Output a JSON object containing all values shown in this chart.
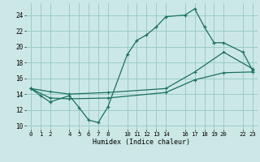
{
  "xlabel": "Humidex (Indice chaleur)",
  "bg_color": "#cce8e6",
  "grid_color": "#99ccc8",
  "line_color": "#1a7060",
  "xlim": [
    -0.5,
    23.5
  ],
  "ylim": [
    9.5,
    25.5
  ],
  "xticks": [
    0,
    1,
    2,
    4,
    5,
    6,
    7,
    8,
    10,
    11,
    12,
    13,
    14,
    16,
    17,
    18,
    19,
    20,
    22,
    23
  ],
  "yticks": [
    10,
    12,
    14,
    16,
    18,
    20,
    22,
    24
  ],
  "line1_x": [
    0,
    1,
    2,
    4,
    5,
    6,
    7,
    8,
    10,
    11,
    12,
    13,
    14,
    16,
    17,
    18,
    19,
    20,
    22,
    23
  ],
  "line1_y": [
    14.7,
    13.8,
    13.0,
    13.8,
    12.3,
    10.7,
    10.4,
    12.4,
    19.0,
    20.8,
    21.5,
    22.5,
    23.8,
    24.0,
    24.8,
    22.5,
    20.5,
    20.5,
    19.3,
    17.0
  ],
  "line2_x": [
    0,
    2,
    4,
    8,
    14,
    17,
    20,
    23
  ],
  "line2_y": [
    14.7,
    14.3,
    14.0,
    14.2,
    14.7,
    16.8,
    19.3,
    17.2
  ],
  "line3_x": [
    0,
    2,
    4,
    8,
    14,
    17,
    20,
    23
  ],
  "line3_y": [
    14.7,
    13.5,
    13.4,
    13.5,
    14.2,
    15.8,
    16.7,
    16.8
  ]
}
